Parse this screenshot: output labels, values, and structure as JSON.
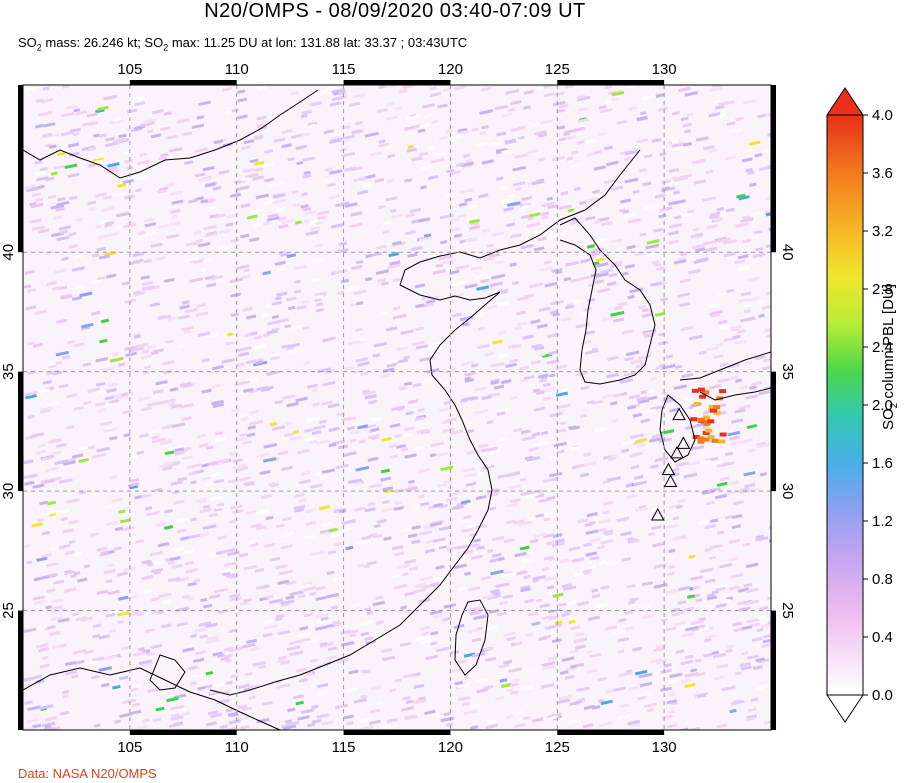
{
  "header": {
    "title": "N20/OMPS - 08/09/2020 03:40-07:09 UT",
    "subtitle_prefix": "SO",
    "subtitle_sub": "2",
    "subtitle_mid": " mass: 26.246 kt; SO",
    "subtitle_sub2": "2",
    "subtitle_rest": " max: 11.25 DU at lon: 131.88 lat: 33.37 ; 03:43UTC"
  },
  "footer": {
    "credit": "Data: NASA N20/OMPS"
  },
  "map": {
    "lon_range": [
      100,
      135
    ],
    "lat_range": [
      20,
      47
    ],
    "lon_ticks": [
      "105",
      "110",
      "115",
      "120",
      "125",
      "130"
    ],
    "lon_tick_values": [
      105,
      110,
      115,
      120,
      125,
      130
    ],
    "lat_ticks": [
      "40",
      "35",
      "30",
      "25"
    ],
    "lat_tick_values": [
      40,
      35,
      30,
      25
    ],
    "grid": "dashed",
    "volcano_markers": [
      {
        "lon": 130.7,
        "lat": 33.2
      },
      {
        "lon": 130.9,
        "lat": 32.0
      },
      {
        "lon": 130.6,
        "lat": 31.6
      },
      {
        "lon": 130.3,
        "lat": 30.4
      },
      {
        "lon": 129.7,
        "lat": 29.0
      },
      {
        "lon": 130.2,
        "lat": 30.9
      }
    ]
  },
  "colorbar": {
    "ticks": [
      "4.0",
      "3.6",
      "3.2",
      "2.8",
      "2.4",
      "2.0",
      "1.6",
      "1.2",
      "0.8",
      "0.4",
      "0.0"
    ],
    "label_prefix": "SO",
    "label_sub": "2",
    "label_rest": " column PBL [DU]",
    "colors": [
      "#e83018",
      "#f06a1c",
      "#f5a623",
      "#f3d12a",
      "#e6f03a",
      "#9ee83c",
      "#3fd43f",
      "#36c7a6",
      "#4aa8e6",
      "#8f9ef2",
      "#c0a6f0",
      "#e6b4ee",
      "#f5d6f5",
      "#ffffff"
    ]
  }
}
